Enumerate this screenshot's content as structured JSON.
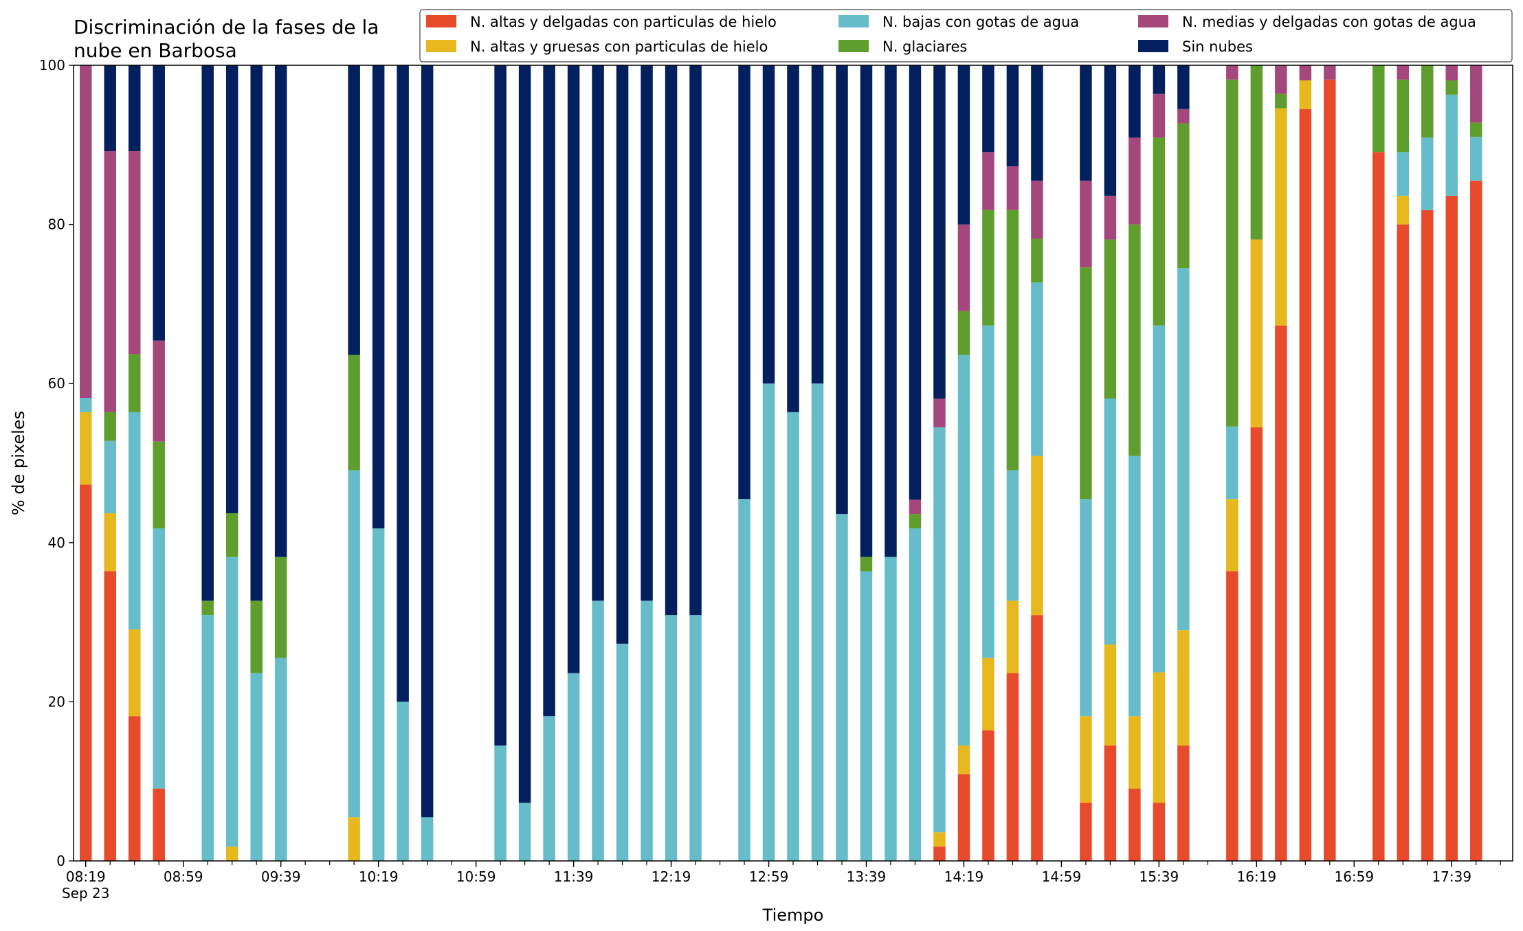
{
  "chart_data": {
    "type": "bar",
    "stacked": true,
    "title_line1": "Discriminación de la fases de la",
    "title_line2": "nube en Barbosa",
    "xlabel": "Tiempo",
    "ylabel": "% de pixeles",
    "ylim": [
      0,
      100
    ],
    "yticks": [
      0,
      20,
      40,
      60,
      80,
      100
    ],
    "x_start": "08:19",
    "x_end": "17:59",
    "x_step_minutes": 10,
    "xticks": [
      "08:19",
      "08:59",
      "09:39",
      "10:19",
      "10:59",
      "11:39",
      "12:19",
      "12:59",
      "13:39",
      "14:19",
      "14:59",
      "15:39",
      "16:19",
      "16:59",
      "17:39"
    ],
    "xtick_date": "Sep 23",
    "grid": false,
    "legend_position": "top-right",
    "series": [
      {
        "name": "N. altas y delgadas con particulas de hielo",
        "color": "#e84a2c"
      },
      {
        "name": "N. altas y gruesas con particulas de hielo",
        "color": "#e6b81e"
      },
      {
        "name": "N. bajas con gotas de agua",
        "color": "#66bdc9"
      },
      {
        "name": "N. glaciares",
        "color": "#5f9e2e"
      },
      {
        "name": "N. medias y delgadas con gotas de agua",
        "color": "#a4477a"
      },
      {
        "name": "Sin nubes",
        "color": "#031f5e"
      }
    ],
    "bars": [
      {
        "time": "08:19",
        "values": [
          47.3,
          9.1,
          1.8,
          0,
          41.8,
          0
        ]
      },
      {
        "time": "08:29",
        "values": [
          36.4,
          7.3,
          9.1,
          3.6,
          32.8,
          10.8
        ]
      },
      {
        "time": "08:39",
        "values": [
          18.2,
          10.9,
          27.3,
          7.3,
          25.5,
          10.8
        ]
      },
      {
        "time": "08:49",
        "values": [
          9.1,
          0,
          32.7,
          10.9,
          12.7,
          34.6
        ]
      },
      {
        "time": "09:09",
        "values": [
          0,
          0,
          30.9,
          1.8,
          0,
          67.3
        ]
      },
      {
        "time": "09:19",
        "values": [
          0,
          1.8,
          36.4,
          5.5,
          0,
          56.3
        ]
      },
      {
        "time": "09:29",
        "values": [
          0,
          0,
          23.6,
          9.1,
          0,
          67.3
        ]
      },
      {
        "time": "09:39",
        "values": [
          0,
          0,
          25.5,
          12.7,
          0,
          61.8
        ]
      },
      {
        "time": "10:09",
        "values": [
          0,
          5.5,
          43.6,
          14.5,
          0,
          36.4
        ]
      },
      {
        "time": "10:19",
        "values": [
          0,
          0,
          41.8,
          0,
          0,
          58.2
        ]
      },
      {
        "time": "10:29",
        "values": [
          0,
          0,
          20.0,
          0,
          0,
          80.0
        ]
      },
      {
        "time": "10:39",
        "values": [
          0,
          0,
          5.5,
          0,
          0,
          94.5
        ]
      },
      {
        "time": "11:09",
        "values": [
          0,
          0,
          14.5,
          0,
          0,
          85.5
        ]
      },
      {
        "time": "11:19",
        "values": [
          0,
          0,
          7.3,
          0,
          0,
          92.7
        ]
      },
      {
        "time": "11:29",
        "values": [
          0,
          0,
          18.2,
          0,
          0,
          81.8
        ]
      },
      {
        "time": "11:39",
        "values": [
          0,
          0,
          23.6,
          0,
          0,
          76.4
        ]
      },
      {
        "time": "11:49",
        "values": [
          0,
          0,
          32.7,
          0,
          0,
          67.3
        ]
      },
      {
        "time": "11:59",
        "values": [
          0,
          0,
          27.3,
          0,
          0,
          72.7
        ]
      },
      {
        "time": "12:09",
        "values": [
          0,
          0,
          32.7,
          0,
          0,
          67.3
        ]
      },
      {
        "time": "12:19",
        "values": [
          0,
          0,
          30.9,
          0,
          0,
          69.1
        ]
      },
      {
        "time": "12:29",
        "values": [
          0,
          0,
          30.9,
          0,
          0,
          69.1
        ]
      },
      {
        "time": "12:49",
        "values": [
          0,
          0,
          45.5,
          0,
          0,
          54.5
        ]
      },
      {
        "time": "12:59",
        "values": [
          0,
          0,
          60.0,
          0,
          0,
          40.0
        ]
      },
      {
        "time": "13:09",
        "values": [
          0,
          0,
          56.4,
          0,
          0,
          43.6
        ]
      },
      {
        "time": "13:19",
        "values": [
          0,
          0,
          60.0,
          0,
          0,
          40.0
        ]
      },
      {
        "time": "13:29",
        "values": [
          0,
          0,
          43.6,
          0,
          0,
          56.4
        ]
      },
      {
        "time": "13:39",
        "values": [
          0,
          0,
          36.4,
          1.8,
          0,
          61.8
        ]
      },
      {
        "time": "13:49",
        "values": [
          0,
          0,
          38.2,
          0,
          0,
          61.8
        ]
      },
      {
        "time": "13:59",
        "values": [
          0,
          0,
          41.8,
          1.8,
          1.8,
          54.6
        ]
      },
      {
        "time": "14:09",
        "values": [
          1.8,
          1.8,
          50.9,
          0,
          3.6,
          41.9
        ]
      },
      {
        "time": "14:19",
        "values": [
          10.9,
          3.6,
          49.1,
          5.5,
          10.9,
          20.0
        ]
      },
      {
        "time": "14:29",
        "values": [
          16.4,
          9.1,
          41.8,
          14.5,
          7.3,
          10.9
        ]
      },
      {
        "time": "14:39",
        "values": [
          23.6,
          9.1,
          16.4,
          32.7,
          5.5,
          12.7
        ]
      },
      {
        "time": "14:49",
        "values": [
          30.9,
          20.0,
          21.8,
          5.5,
          7.3,
          14.5
        ]
      },
      {
        "time": "15:09",
        "values": [
          7.3,
          10.9,
          27.3,
          29.1,
          10.9,
          14.5
        ]
      },
      {
        "time": "15:19",
        "values": [
          14.5,
          12.7,
          30.9,
          20.0,
          5.5,
          16.4
        ]
      },
      {
        "time": "15:29",
        "values": [
          9.1,
          9.1,
          32.7,
          29.1,
          10.9,
          9.1
        ]
      },
      {
        "time": "15:39",
        "values": [
          7.3,
          16.4,
          43.6,
          23.6,
          5.5,
          3.6
        ]
      },
      {
        "time": "15:49",
        "values": [
          14.5,
          14.5,
          45.5,
          18.2,
          1.8,
          5.5
        ]
      },
      {
        "time": "16:09",
        "values": [
          36.4,
          9.1,
          9.1,
          43.6,
          1.8,
          0
        ]
      },
      {
        "time": "16:19",
        "values": [
          54.5,
          23.6,
          0,
          21.9,
          0,
          0
        ]
      },
      {
        "time": "16:29",
        "values": [
          67.3,
          27.3,
          0,
          1.8,
          3.6,
          0
        ]
      },
      {
        "time": "16:39",
        "values": [
          94.5,
          3.6,
          0,
          0,
          1.9,
          0
        ]
      },
      {
        "time": "16:49",
        "values": [
          98.2,
          0,
          0,
          0,
          1.8,
          0
        ]
      },
      {
        "time": "17:09",
        "values": [
          89.1,
          0,
          0,
          10.9,
          0,
          0
        ]
      },
      {
        "time": "17:19",
        "values": [
          80.0,
          3.6,
          5.5,
          9.1,
          1.8,
          0
        ]
      },
      {
        "time": "17:29",
        "values": [
          81.8,
          0,
          9.1,
          9.1,
          0,
          0
        ]
      },
      {
        "time": "17:39",
        "values": [
          83.6,
          0,
          12.7,
          1.8,
          1.9,
          0
        ]
      },
      {
        "time": "17:49",
        "values": [
          85.5,
          0,
          5.5,
          1.8,
          7.2,
          0
        ]
      }
    ]
  }
}
